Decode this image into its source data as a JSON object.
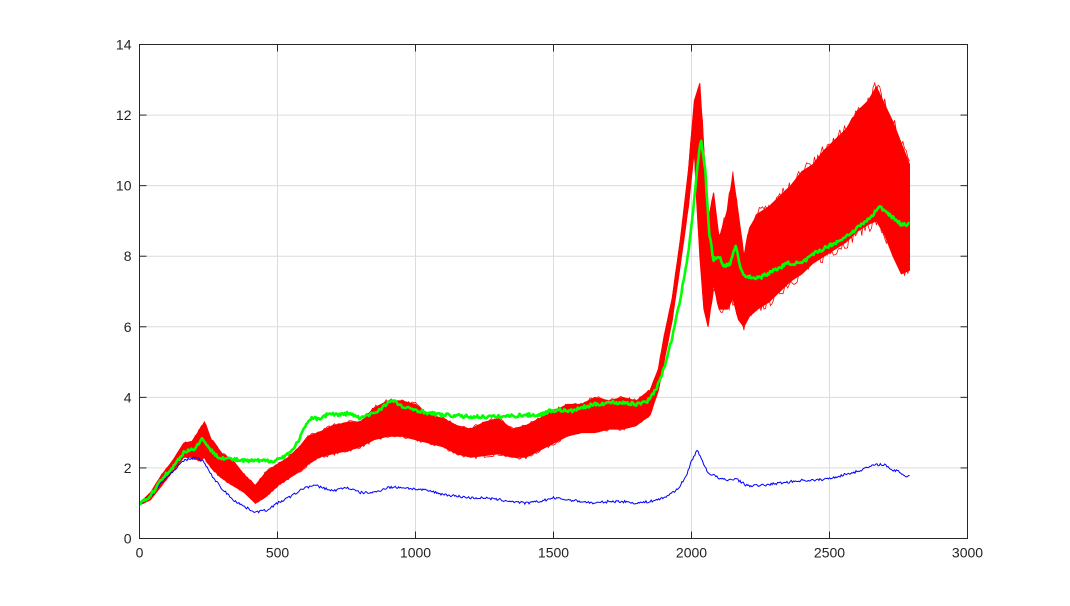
{
  "chart_data": {
    "type": "line",
    "title": "",
    "xlabel": "",
    "ylabel": "",
    "xlim": [
      0,
      3000
    ],
    "ylim": [
      0,
      14
    ],
    "xticks": [
      0,
      500,
      1000,
      1500,
      2000,
      2500,
      3000
    ],
    "yticks": [
      0,
      2,
      4,
      6,
      8,
      10,
      12,
      14
    ],
    "xtick_labels": [
      "0",
      "500",
      "1000",
      "1500",
      "2000",
      "2500",
      "3000"
    ],
    "ytick_labels": [
      "0",
      "2",
      "4",
      "6",
      "8",
      "10",
      "12",
      "14"
    ],
    "grid": true,
    "legend": "none",
    "series": [
      {
        "color": "#0000ff",
        "kind": "single",
        "x": [
          0,
          40,
          80,
          120,
          160,
          200,
          230,
          260,
          300,
          340,
          380,
          420,
          460,
          500,
          550,
          600,
          640,
          700,
          750,
          800,
          850,
          900,
          950,
          1000,
          1050,
          1100,
          1150,
          1200,
          1250,
          1300,
          1350,
          1400,
          1450,
          1500,
          1550,
          1600,
          1650,
          1700,
          1750,
          1800,
          1850,
          1900,
          1950,
          1980,
          2000,
          2020,
          2040,
          2060,
          2080,
          2100,
          2130,
          2160,
          2200,
          2250,
          2300,
          2350,
          2400,
          2450,
          2500,
          2550,
          2600,
          2650,
          2680,
          2700,
          2720,
          2750,
          2780,
          2790
        ],
        "y": [
          1.0,
          1.2,
          1.6,
          1.9,
          2.2,
          2.3,
          2.2,
          1.8,
          1.4,
          1.1,
          0.9,
          0.75,
          0.8,
          1.0,
          1.2,
          1.45,
          1.5,
          1.35,
          1.45,
          1.3,
          1.3,
          1.45,
          1.45,
          1.4,
          1.35,
          1.25,
          1.2,
          1.15,
          1.15,
          1.1,
          1.05,
          1.0,
          1.05,
          1.15,
          1.1,
          1.05,
          1.0,
          1.05,
          1.05,
          1.0,
          1.05,
          1.15,
          1.4,
          1.75,
          2.2,
          2.5,
          2.2,
          1.85,
          1.8,
          1.7,
          1.65,
          1.7,
          1.5,
          1.5,
          1.55,
          1.6,
          1.65,
          1.65,
          1.7,
          1.8,
          1.9,
          2.05,
          2.1,
          2.1,
          1.95,
          1.9,
          1.75,
          1.8
        ]
      },
      {
        "color": "#ff0000",
        "kind": "ensemble-band",
        "x": [
          0,
          40,
          80,
          120,
          160,
          190,
          220,
          235,
          260,
          300,
          340,
          380,
          420,
          460,
          500,
          540,
          580,
          610,
          650,
          700,
          760,
          800,
          850,
          900,
          950,
          1000,
          1050,
          1100,
          1150,
          1200,
          1250,
          1300,
          1350,
          1400,
          1450,
          1500,
          1550,
          1600,
          1650,
          1700,
          1750,
          1800,
          1850,
          1880,
          1900,
          1930,
          1960,
          1990,
          2010,
          2030,
          2045,
          2060,
          2080,
          2100,
          2130,
          2150,
          2170,
          2190,
          2210,
          2240,
          2280,
          2320,
          2360,
          2400,
          2440,
          2480,
          2520,
          2560,
          2600,
          2640,
          2670,
          2700,
          2730,
          2760,
          2790
        ],
        "upper": [
          1.0,
          1.3,
          1.8,
          2.2,
          2.7,
          2.75,
          3.1,
          3.3,
          2.8,
          2.4,
          2.2,
          1.8,
          1.5,
          1.9,
          2.1,
          2.3,
          2.6,
          2.9,
          3.0,
          3.2,
          3.3,
          3.3,
          3.7,
          3.9,
          3.9,
          3.8,
          3.5,
          3.4,
          3.2,
          3.1,
          3.3,
          3.4,
          3.1,
          3.2,
          3.4,
          3.6,
          3.8,
          3.8,
          4.0,
          3.9,
          4.0,
          3.9,
          4.2,
          4.8,
          5.7,
          6.8,
          8.5,
          10.5,
          12.4,
          12.9,
          11.0,
          9.0,
          9.8,
          8.5,
          9.3,
          10.3,
          9.2,
          8.0,
          8.8,
          9.2,
          9.4,
          9.7,
          10.0,
          10.4,
          10.6,
          11.0,
          11.3,
          11.6,
          12.1,
          12.4,
          12.8,
          12.3,
          11.8,
          11.2,
          10.6
        ],
        "lower": [
          0.95,
          1.1,
          1.5,
          1.9,
          2.3,
          2.3,
          2.2,
          2.3,
          2.0,
          1.7,
          1.5,
          1.3,
          1.0,
          1.2,
          1.5,
          1.7,
          1.9,
          2.1,
          2.3,
          2.4,
          2.5,
          2.6,
          2.8,
          2.9,
          2.9,
          2.8,
          2.7,
          2.6,
          2.4,
          2.3,
          2.35,
          2.4,
          2.3,
          2.3,
          2.5,
          2.7,
          2.9,
          3.0,
          3.0,
          3.1,
          3.1,
          3.2,
          3.5,
          4.2,
          5.0,
          6.2,
          7.8,
          9.5,
          11.0,
          8.0,
          6.5,
          6.0,
          7.2,
          6.5,
          6.5,
          6.8,
          6.2,
          6.0,
          6.3,
          6.5,
          6.7,
          7.0,
          7.3,
          7.5,
          7.8,
          8.0,
          8.2,
          8.4,
          8.7,
          8.9,
          9.0,
          8.6,
          8.0,
          7.5,
          7.6
        ]
      },
      {
        "color": "#00ff00",
        "kind": "single",
        "x": [
          0,
          40,
          80,
          120,
          160,
          200,
          230,
          250,
          290,
          330,
          380,
          430,
          480,
          520,
          560,
          600,
          620,
          650,
          690,
          720,
          760,
          800,
          860,
          900,
          920,
          960,
          1000,
          1050,
          1100,
          1200,
          1300,
          1400,
          1450,
          1480,
          1520,
          1560,
          1600,
          1650,
          1700,
          1760,
          1800,
          1840,
          1870,
          1900,
          1930,
          1960,
          1990,
          2010,
          2025,
          2035,
          2050,
          2065,
          2080,
          2100,
          2120,
          2140,
          2160,
          2180,
          2200,
          2250,
          2300,
          2350,
          2400,
          2450,
          2500,
          2550,
          2600,
          2650,
          2680,
          2700,
          2730,
          2760,
          2790
        ],
        "y": [
          1.0,
          1.2,
          1.7,
          2.0,
          2.45,
          2.55,
          2.85,
          2.55,
          2.3,
          2.25,
          2.2,
          2.2,
          2.2,
          2.3,
          2.55,
          3.15,
          3.4,
          3.4,
          3.55,
          3.5,
          3.55,
          3.4,
          3.6,
          3.85,
          3.9,
          3.7,
          3.65,
          3.55,
          3.5,
          3.45,
          3.45,
          3.5,
          3.5,
          3.6,
          3.65,
          3.6,
          3.7,
          3.8,
          3.85,
          3.85,
          3.8,
          3.9,
          4.2,
          4.8,
          5.7,
          6.8,
          8.2,
          9.6,
          10.8,
          11.3,
          10.4,
          8.6,
          7.9,
          8.0,
          7.7,
          7.8,
          8.3,
          7.6,
          7.4,
          7.4,
          7.6,
          7.8,
          7.8,
          8.1,
          8.3,
          8.5,
          8.8,
          9.1,
          9.4,
          9.3,
          9.1,
          8.9,
          8.9
        ]
      }
    ]
  }
}
